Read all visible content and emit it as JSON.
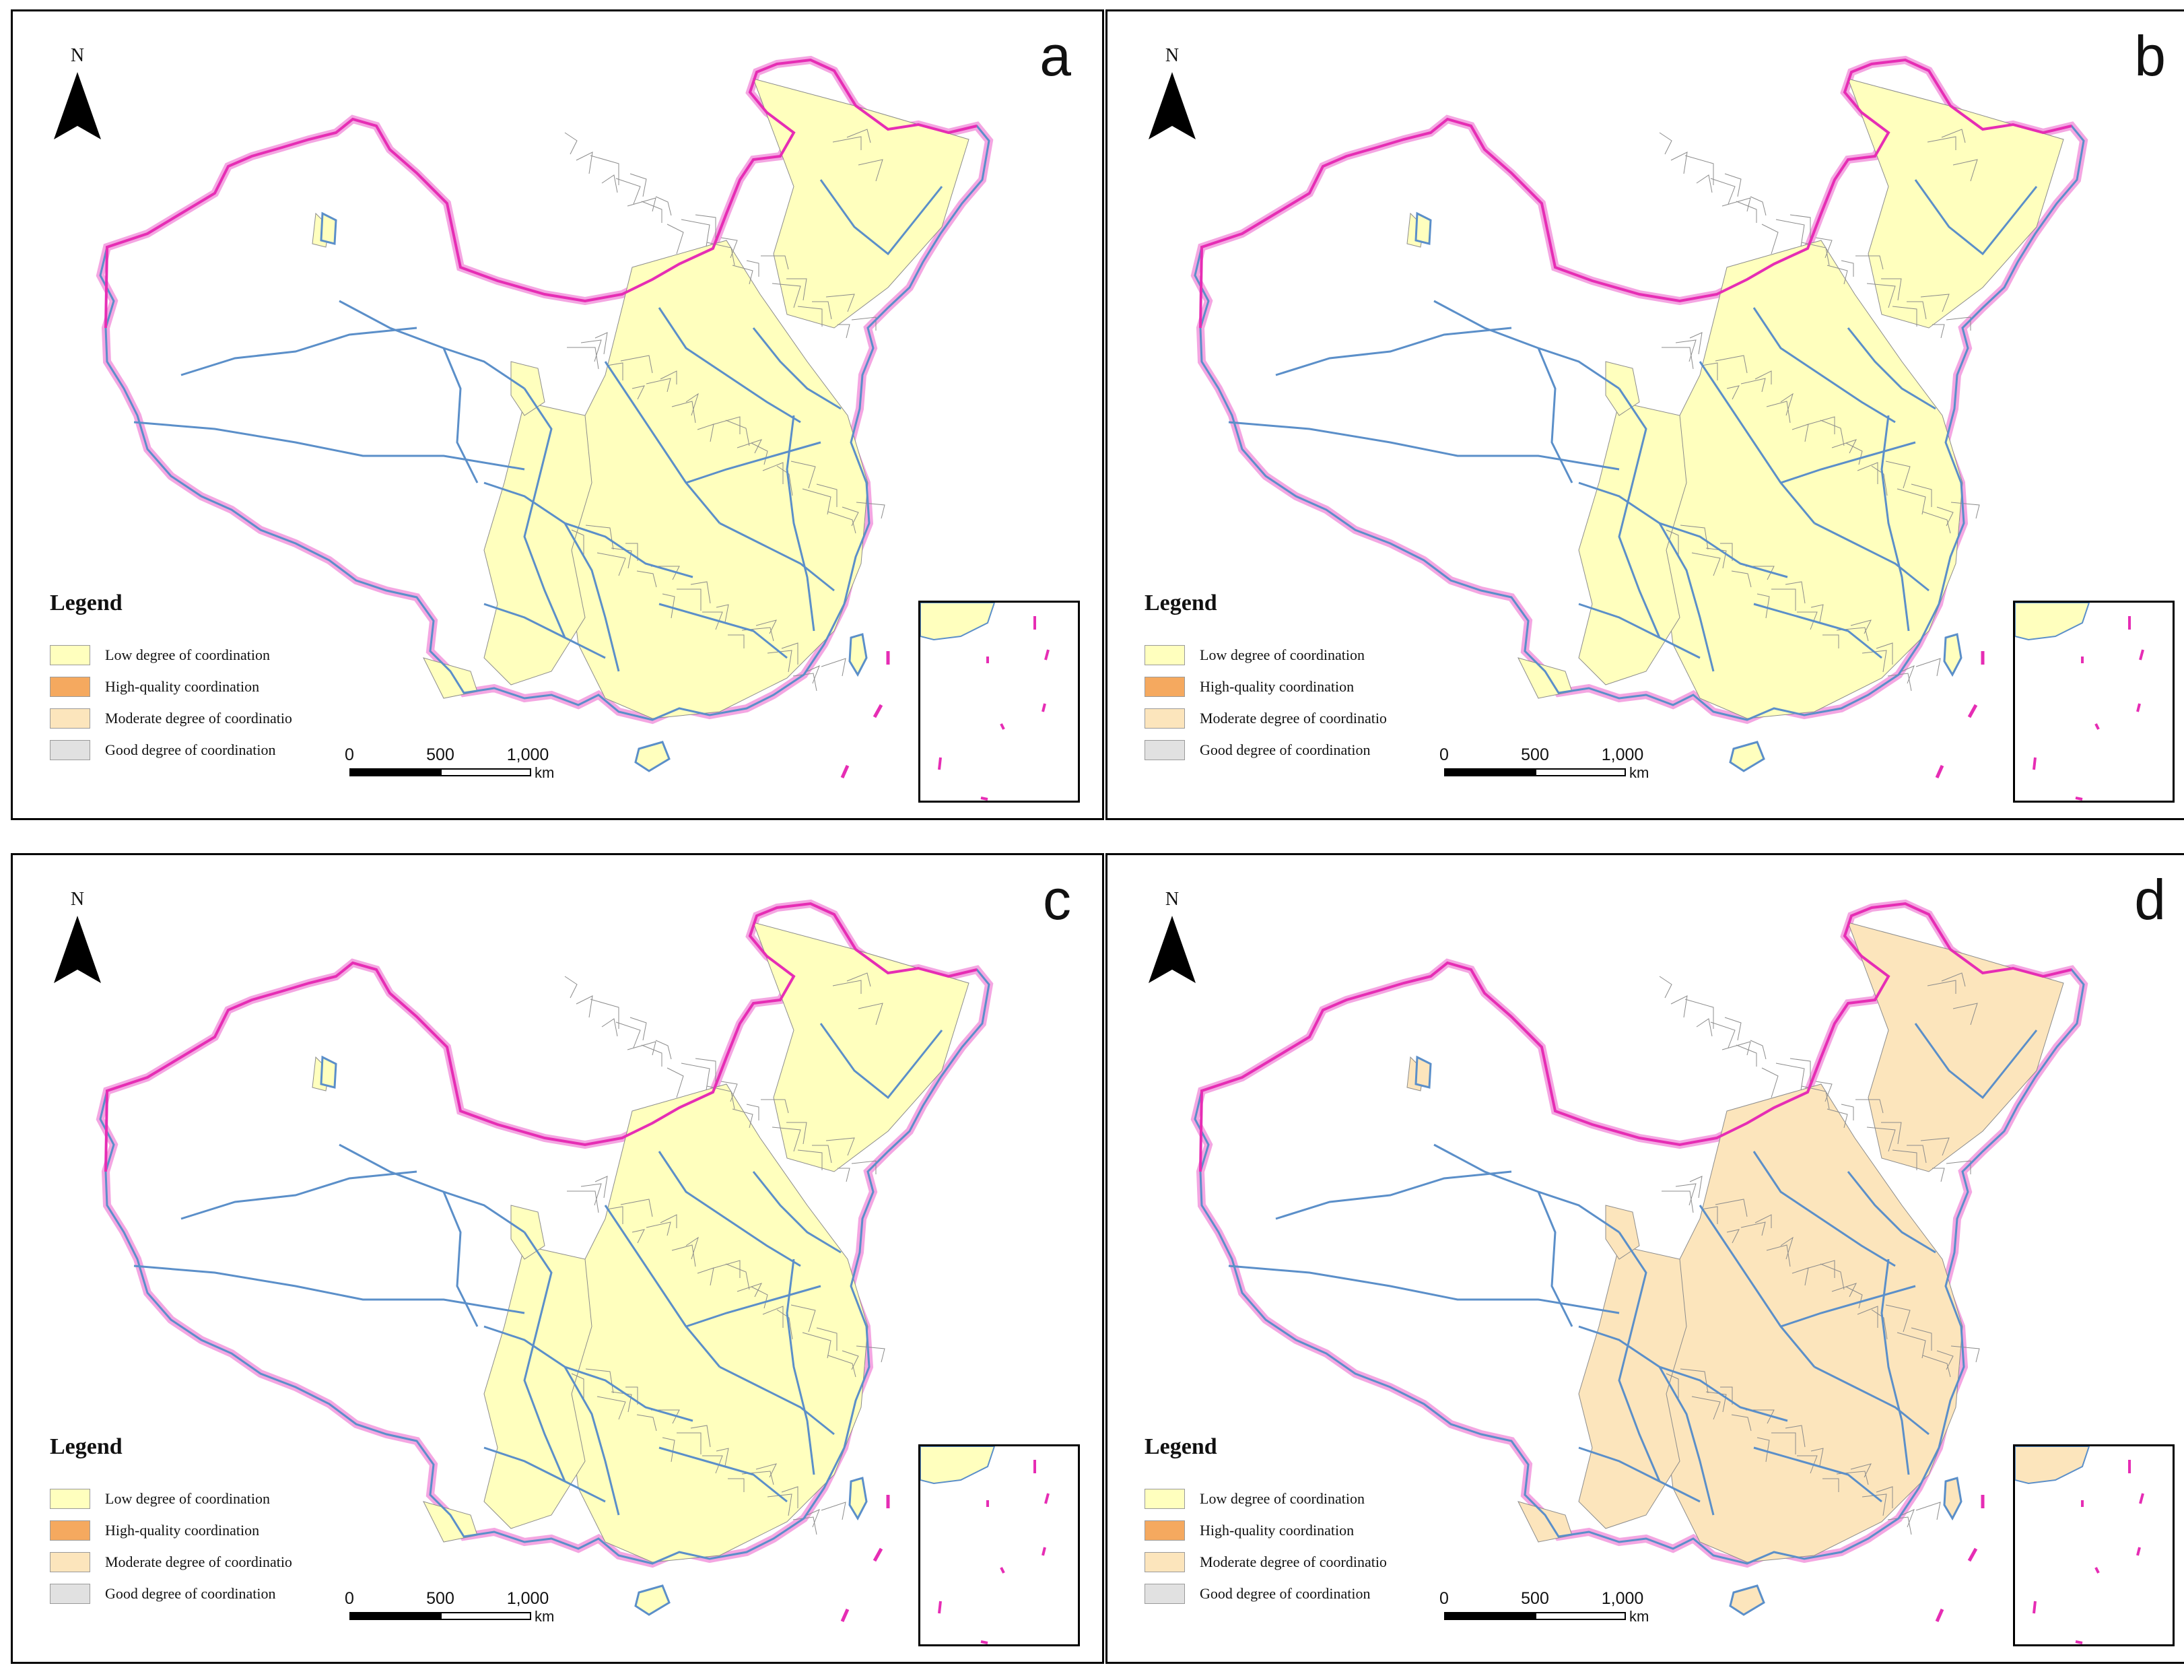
{
  "legend": {
    "title": "Legend",
    "items": [
      {
        "label": "Low degree of coordination",
        "color": "#FFFFBE"
      },
      {
        "label": "High-quality coordination",
        "color": "#F5A95F"
      },
      {
        "label": "Moderate degree of coordinatio",
        "color": "#FCE5BC"
      },
      {
        "label": "Good degree of coordination",
        "color": "#E1E1E1"
      }
    ]
  },
  "north_arrow": {
    "letter": "N"
  },
  "scale": {
    "ticks": [
      "0",
      "500",
      "1,000"
    ],
    "unit": "km"
  },
  "colors": {
    "national_border": "#E62DB4",
    "border_glow": "#F4A6E2",
    "province_border": "#5B8FC9",
    "city_border": "#8C8C8C",
    "no_data": "#FFFFFF"
  },
  "panels": [
    {
      "label": "a",
      "highlighted_category": "Low degree of coordination"
    },
    {
      "label": "b",
      "highlighted_category": "Low degree of coordination"
    },
    {
      "label": "c",
      "highlighted_category": "Low degree of coordination"
    },
    {
      "label": "d",
      "highlighted_category": "Moderate degree of coordinatio"
    }
  ]
}
